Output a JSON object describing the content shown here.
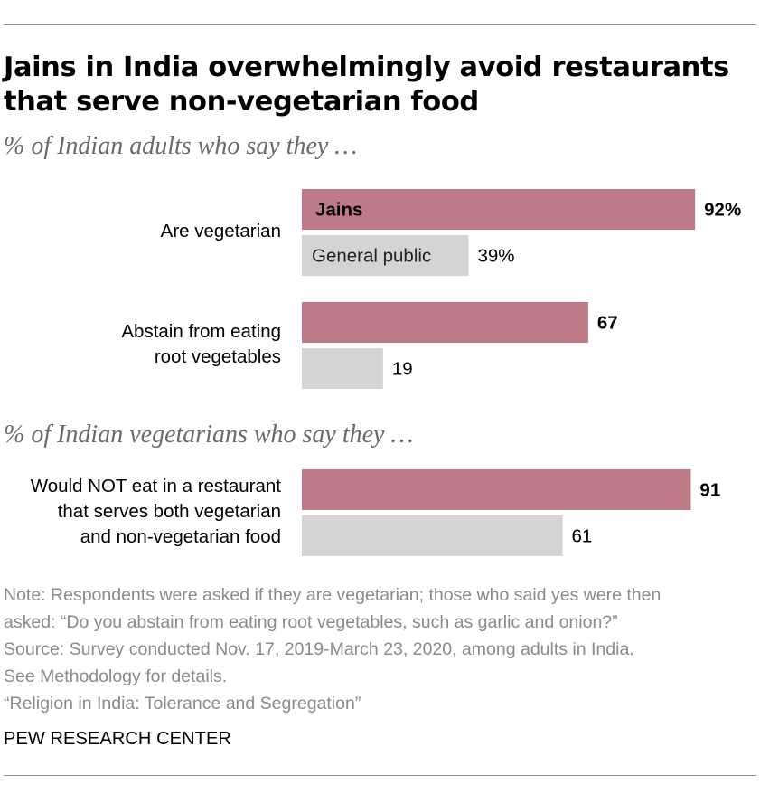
{
  "header": {
    "title": "Jains in India overwhelmingly avoid restaurants that serve non-vegetarian food",
    "subtitle1": "% of Indian adults who say they …",
    "subtitle2": "% of Indian vegetarians who say they …"
  },
  "chart_data": {
    "type": "bar",
    "orientation": "horizontal",
    "title": "Jains in India overwhelmingly avoid restaurants that serve non-vegetarian food",
    "xlim": [
      0,
      100
    ],
    "categories": [
      "Are vegetarian",
      "Abstain from eating root vegetables",
      "Would NOT eat in a restaurant that serves both vegetarian and non-vegetarian food"
    ],
    "category_lines": [
      [
        "Are vegetarian"
      ],
      [
        "Abstain from eating",
        "root vegetables"
      ],
      [
        "Would NOT eat in a restaurant",
        "that serves both vegetarian",
        "and non-vegetarian food"
      ]
    ],
    "series": [
      {
        "name": "Jains",
        "color": "#bf7a87",
        "values": [
          92,
          67,
          91
        ],
        "labels": [
          "92%",
          "67",
          "91"
        ]
      },
      {
        "name": "General public",
        "color": "#d4d4d4",
        "values": [
          39,
          19,
          61
        ],
        "labels": [
          "39%",
          "19",
          "61"
        ]
      }
    ]
  },
  "notes": [
    "Note: Respondents were asked if they are vegetarian; those who said yes were then",
    "asked: “Do you abstain from eating root vegetables, such as garlic and onion?”",
    "Source: Survey conducted Nov. 17, 2019-March 23, 2020, among adults in India.",
    "See Methodology for details.",
    "“Religion in India: Tolerance and Segregation”"
  ],
  "footer": "PEW RESEARCH CENTER"
}
